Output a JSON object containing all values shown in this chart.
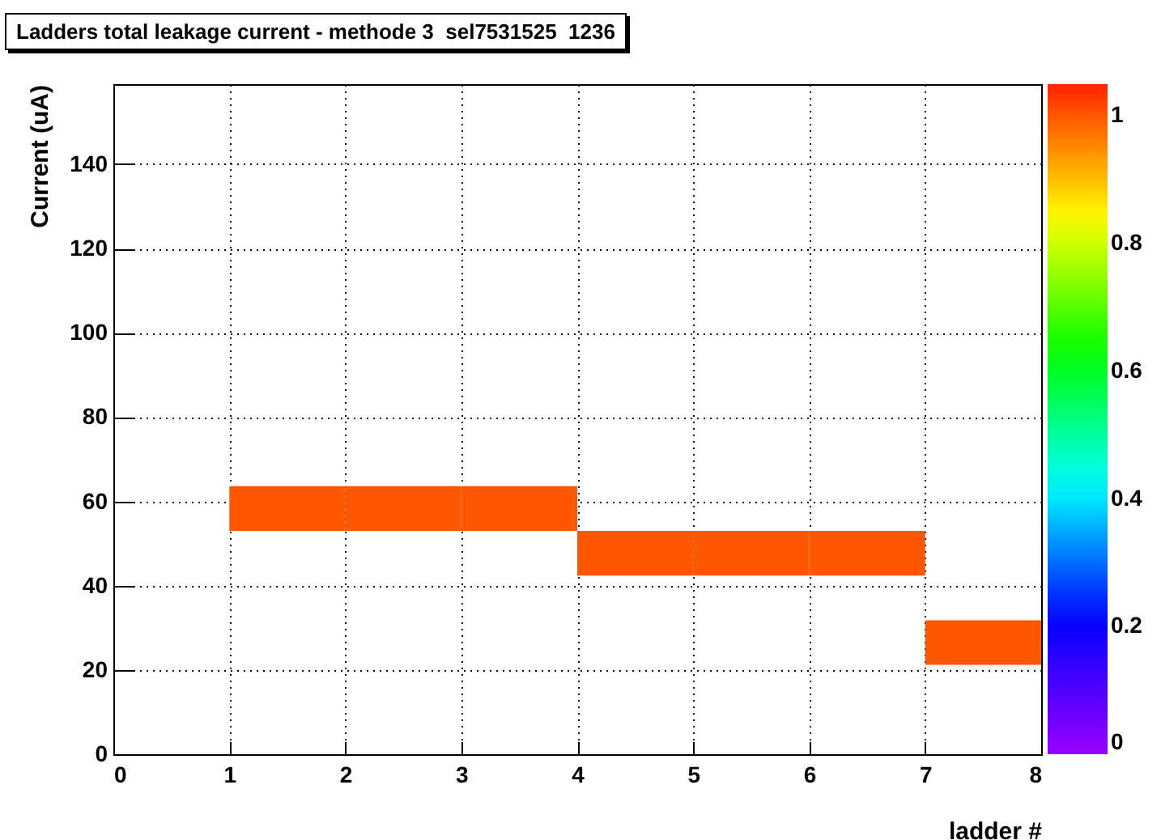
{
  "chart_data": {
    "type": "bar",
    "title": "Ladders total leakage current - methode 3  sel7531525  1236",
    "xlabel": "ladder #",
    "ylabel": "Current (uA)",
    "x": [
      1.5,
      2.5,
      3.5,
      4.5,
      5.5,
      6.5,
      7.5
    ],
    "values": [
      10.6,
      10.6,
      10.6,
      10.6,
      10.6,
      10.6,
      10.6
    ],
    "base": [
      53,
      53,
      53,
      42.4,
      42.4,
      42.4,
      21.2
    ],
    "cvalues": [
      1,
      1,
      1,
      1,
      1,
      1,
      1
    ],
    "xlim": [
      0,
      8
    ],
    "xticks": [
      0,
      1,
      2,
      3,
      4,
      5,
      6,
      7,
      8
    ],
    "ylim": [
      0,
      159
    ],
    "yticks": [
      0,
      20,
      40,
      60,
      80,
      100,
      120,
      140
    ],
    "clim": [
      0,
      1.05
    ],
    "cticks": [
      0,
      0.2,
      0.4,
      0.6,
      0.8,
      1
    ],
    "grid": true
  }
}
